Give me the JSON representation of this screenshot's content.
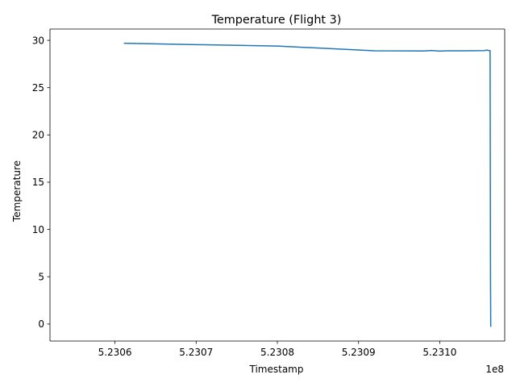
{
  "chart_data": {
    "type": "line",
    "title": "Temperature (Flight 3)",
    "xlabel": "Timestamp",
    "ylabel": "Temperature",
    "x_offset_label": "1e8",
    "xlim": [
      5.23052,
      5.23108
    ],
    "ylim": [
      -1.8,
      31.2
    ],
    "xticks": [
      5.2306,
      5.2307,
      5.2308,
      5.2309,
      5.231
    ],
    "xtick_labels": [
      "5.2306",
      "5.2307",
      "5.2308",
      "5.2309",
      "5.2310"
    ],
    "yticks": [
      0,
      5,
      10,
      15,
      20,
      25,
      30
    ],
    "ytick_labels": [
      "0",
      "5",
      "10",
      "15",
      "20",
      "25",
      "30"
    ],
    "grid": false,
    "color": "#1f77b4",
    "series": [
      {
        "x": [
          5.230611,
          5.2307,
          5.2308,
          5.23092,
          5.23098,
          5.23099,
          5.231,
          5.23101,
          5.23103,
          5.231055,
          5.231058,
          5.23106,
          5.231062,
          5.2310625,
          5.2310628
        ],
        "y": [
          29.7,
          29.55,
          29.4,
          28.9,
          28.88,
          28.93,
          28.87,
          28.9,
          28.9,
          28.92,
          28.97,
          28.93,
          28.92,
          5.0,
          -0.3
        ]
      }
    ]
  }
}
